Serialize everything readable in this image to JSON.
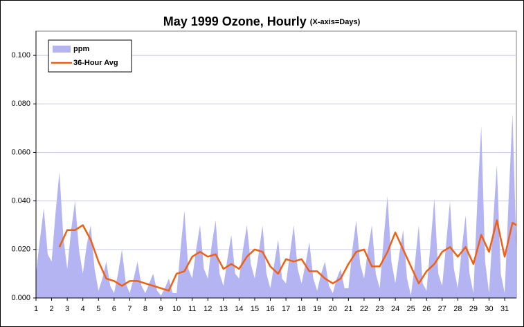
{
  "chart_data": {
    "type": "area_line",
    "title": "May 1999 Ozone, Hourly",
    "subtitle": "(X-axis=Days)",
    "xlim": [
      1,
      31.75
    ],
    "xticks": [
      1,
      2,
      3,
      4,
      5,
      6,
      7,
      8,
      9,
      10,
      11,
      12,
      13,
      14,
      15,
      16,
      17,
      18,
      19,
      20,
      21,
      22,
      23,
      24,
      25,
      26,
      27,
      28,
      29,
      30,
      31
    ],
    "ylim": [
      0,
      0.11
    ],
    "yticks": [
      {
        "value": 0,
        "label": "0.000"
      },
      {
        "value": 0.02,
        "label": "0.020"
      },
      {
        "value": 0.04,
        "label": "0.040"
      },
      {
        "value": 0.06,
        "label": "0.060"
      },
      {
        "value": 0.08,
        "label": "0.080"
      },
      {
        "value": 0.1,
        "label": "0.100"
      }
    ],
    "grid": true,
    "legend": "top-left",
    "series": [
      {
        "name": "ppm",
        "kind": "area",
        "color": "#b4b4f2",
        "x": [
          1,
          1.25,
          1.5,
          1.75,
          2,
          2.25,
          2.5,
          2.75,
          3,
          3.25,
          3.5,
          3.75,
          4,
          4.25,
          4.5,
          4.75,
          5,
          5.25,
          5.5,
          5.75,
          6,
          6.25,
          6.5,
          6.75,
          7,
          7.25,
          7.5,
          7.75,
          8,
          8.25,
          8.5,
          8.75,
          9,
          9.25,
          9.5,
          9.75,
          10,
          10.25,
          10.5,
          10.75,
          11,
          11.25,
          11.5,
          11.75,
          12,
          12.25,
          12.5,
          12.75,
          13,
          13.25,
          13.5,
          13.75,
          14,
          14.25,
          14.5,
          14.75,
          15,
          15.25,
          15.5,
          15.75,
          16,
          16.25,
          16.5,
          16.75,
          17,
          17.25,
          17.5,
          17.75,
          18,
          18.25,
          18.5,
          18.75,
          19,
          19.25,
          19.5,
          19.75,
          20,
          20.25,
          20.5,
          20.75,
          21,
          21.25,
          21.5,
          21.75,
          22,
          22.25,
          22.5,
          22.75,
          23,
          23.25,
          23.5,
          23.75,
          24,
          24.25,
          24.5,
          24.75,
          25,
          25.25,
          25.5,
          25.75,
          26,
          26.25,
          26.5,
          26.75,
          27,
          27.25,
          27.5,
          27.75,
          28,
          28.25,
          28.5,
          28.75,
          29,
          29.25,
          29.5,
          29.75,
          30,
          30.25,
          30.5,
          30.75,
          31,
          31.25,
          31.5,
          31.75
        ],
        "values": [
          0.01,
          0.024,
          0.037,
          0.018,
          0.015,
          0.035,
          0.052,
          0.025,
          0.012,
          0.028,
          0.04,
          0.02,
          0.01,
          0.022,
          0.03,
          0.012,
          0.003,
          0.008,
          0.015,
          0.005,
          0.002,
          0.01,
          0.02,
          0.006,
          0.002,
          0.008,
          0.015,
          0.005,
          0.002,
          0.006,
          0.01,
          0.003,
          0.001,
          0.004,
          0.008,
          0.002,
          0.002,
          0.02,
          0.036,
          0.012,
          0.008,
          0.02,
          0.03,
          0.012,
          0.008,
          0.022,
          0.032,
          0.01,
          0.005,
          0.016,
          0.026,
          0.01,
          0.008,
          0.02,
          0.03,
          0.014,
          0.008,
          0.018,
          0.03,
          0.01,
          0.004,
          0.014,
          0.024,
          0.008,
          0.006,
          0.018,
          0.03,
          0.012,
          0.006,
          0.014,
          0.023,
          0.008,
          0.003,
          0.01,
          0.015,
          0.005,
          0.002,
          0.008,
          0.012,
          0.004,
          0.004,
          0.02,
          0.032,
          0.014,
          0.008,
          0.02,
          0.03,
          0.01,
          0.004,
          0.024,
          0.042,
          0.015,
          0.006,
          0.018,
          0.028,
          0.008,
          0.001,
          0.014,
          0.03,
          0.006,
          0.003,
          0.022,
          0.041,
          0.01,
          0.005,
          0.022,
          0.04,
          0.012,
          0.004,
          0.02,
          0.034,
          0.01,
          0.002,
          0.04,
          0.071,
          0.015,
          0.002,
          0.03,
          0.055,
          0.01,
          0.002,
          0.04,
          0.076,
          0.02
        ]
      },
      {
        "name": "36-Hour Avg",
        "kind": "line",
        "color": "#f06010",
        "x": [
          2.5,
          3,
          3.5,
          4,
          4.5,
          5,
          5.5,
          6,
          6.5,
          7,
          7.5,
          8,
          8.5,
          9,
          9.5,
          10,
          10.5,
          11,
          11.5,
          12,
          12.5,
          13,
          13.5,
          14,
          14.5,
          15,
          15.5,
          16,
          16.5,
          17,
          17.5,
          18,
          18.5,
          19,
          19.5,
          20,
          20.5,
          21,
          21.5,
          22,
          22.5,
          23,
          23.5,
          24,
          24.5,
          25,
          25.5,
          26,
          26.5,
          27,
          27.5,
          28,
          28.5,
          29,
          29.5,
          30,
          30.5,
          31,
          31.5,
          31.75
        ],
        "values": [
          0.021,
          0.028,
          0.028,
          0.03,
          0.024,
          0.015,
          0.008,
          0.007,
          0.005,
          0.007,
          0.007,
          0.006,
          0.005,
          0.004,
          0.003,
          0.01,
          0.011,
          0.017,
          0.019,
          0.017,
          0.018,
          0.012,
          0.014,
          0.012,
          0.017,
          0.02,
          0.019,
          0.013,
          0.01,
          0.016,
          0.015,
          0.016,
          0.011,
          0.011,
          0.008,
          0.006,
          0.008,
          0.014,
          0.019,
          0.02,
          0.013,
          0.013,
          0.019,
          0.027,
          0.02,
          0.013,
          0.006,
          0.011,
          0.014,
          0.019,
          0.021,
          0.017,
          0.021,
          0.014,
          0.026,
          0.019,
          0.032,
          0.017,
          0.031,
          0.03
        ]
      }
    ]
  }
}
